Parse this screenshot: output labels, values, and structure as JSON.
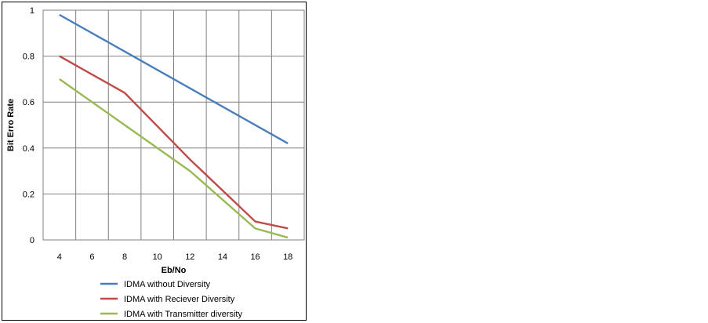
{
  "chart_data": {
    "type": "line",
    "xlabel": "Eb/No",
    "ylabel": "Bit Erro Rate",
    "xlim": [
      3,
      19
    ],
    "ylim": [
      0,
      1
    ],
    "x_ticks": [
      4,
      6,
      8,
      10,
      12,
      14,
      16,
      18
    ],
    "y_ticks": [
      0,
      0.2,
      0.4,
      0.6,
      0.8,
      1
    ],
    "y_tick_labels": [
      "0",
      "0.2",
      "0.4",
      "0.6",
      "0.8",
      "1"
    ],
    "grid": true,
    "legend_position": "bottom",
    "series": [
      {
        "name": "IDMA without Diversity",
        "color": "#4a7ebb",
        "x": [
          4,
          18
        ],
        "y": [
          0.98,
          0.42
        ]
      },
      {
        "name": "IDMA with Reciever Diversity",
        "color": "#be4b48",
        "x": [
          4,
          8,
          12,
          16,
          18
        ],
        "y": [
          0.8,
          0.64,
          0.35,
          0.08,
          0.05
        ]
      },
      {
        "name": "IDMA with Transmitter diversity",
        "color": "#98b954",
        "x": [
          4,
          8,
          12,
          16,
          18
        ],
        "y": [
          0.7,
          0.5,
          0.3,
          0.05,
          0.01
        ]
      }
    ]
  }
}
